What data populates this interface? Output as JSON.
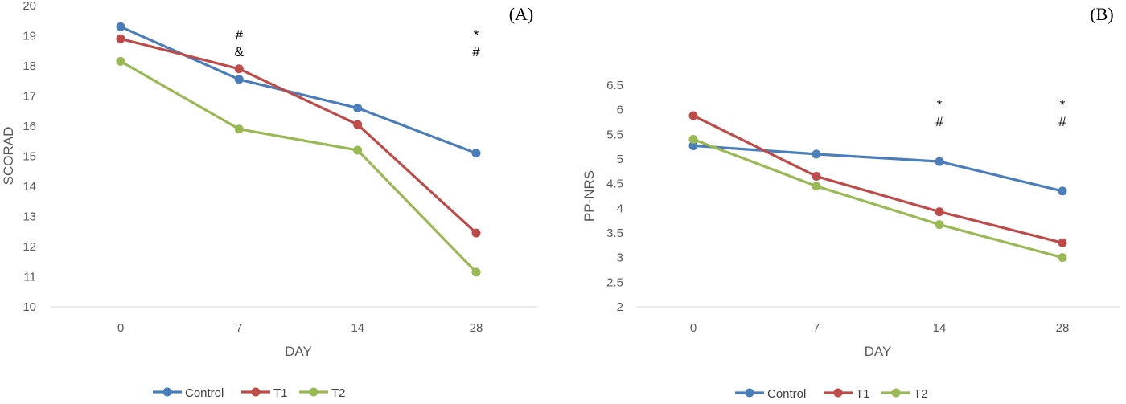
{
  "chart_data": [
    {
      "type": "line",
      "panel_label": "(A)",
      "xlabel": "DAY",
      "ylabel": "SCORAD",
      "categories": [
        "0",
        "7",
        "14",
        "28"
      ],
      "ylim": [
        10,
        20
      ],
      "yticks": [
        "10",
        "11",
        "12",
        "13",
        "14",
        "15",
        "16",
        "17",
        "18",
        "19",
        "20"
      ],
      "grid": false,
      "legend_position": "bottom",
      "series": [
        {
          "name": "Control",
          "color": "#4a7ebb",
          "values": [
            19.3,
            17.55,
            16.6,
            15.1
          ]
        },
        {
          "name": "T1",
          "color": "#be4b48",
          "values": [
            18.9,
            17.9,
            16.05,
            12.45
          ]
        },
        {
          "name": "T2",
          "color": "#98b954",
          "values": [
            18.15,
            15.9,
            15.2,
            11.15
          ]
        }
      ],
      "annotations": [
        {
          "category": "7",
          "lines": [
            "#",
            "&"
          ]
        },
        {
          "category": "28",
          "lines": [
            "*",
            "#"
          ]
        }
      ]
    },
    {
      "type": "line",
      "panel_label": "(B)",
      "xlabel": "DAY",
      "ylabel": "PP-NRS",
      "categories": [
        "0",
        "7",
        "14",
        "28"
      ],
      "ylim": [
        2,
        6.5
      ],
      "yticks": [
        "2",
        "2.5",
        "3",
        "3.5",
        "4",
        "4.5",
        "5",
        "5.5",
        "6",
        "6.5"
      ],
      "grid": false,
      "legend_position": "bottom",
      "series": [
        {
          "name": "Control",
          "color": "#4a7ebb",
          "values": [
            5.27,
            5.1,
            4.95,
            4.35
          ]
        },
        {
          "name": "T1",
          "color": "#be4b48",
          "values": [
            5.88,
            4.65,
            3.93,
            3.3
          ]
        },
        {
          "name": "T2",
          "color": "#98b954",
          "values": [
            5.4,
            4.45,
            3.67,
            3.0
          ]
        }
      ],
      "annotations": [
        {
          "category": "14",
          "lines": [
            "*",
            "#"
          ]
        },
        {
          "category": "28",
          "lines": [
            "*",
            "#"
          ]
        }
      ]
    }
  ]
}
